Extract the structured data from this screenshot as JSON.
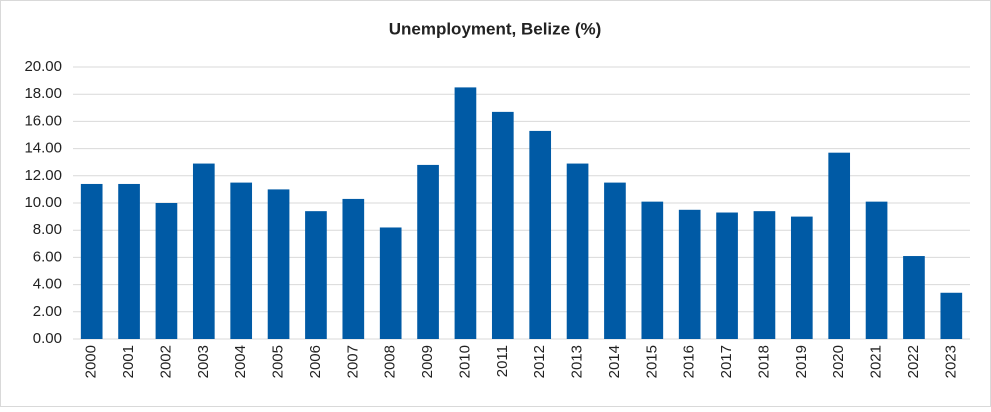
{
  "chart_data": {
    "type": "bar",
    "title": "Unemployment, Belize (%)",
    "categories": [
      "2000",
      "2001",
      "2002",
      "2003",
      "2004",
      "2005",
      "2006",
      "2007",
      "2008",
      "2009",
      "2010",
      "2011",
      "2012",
      "2013",
      "2014",
      "2015",
      "2016",
      "2017",
      "2018",
      "2019",
      "2020",
      "2021",
      "2022",
      "2023"
    ],
    "values": [
      11.4,
      11.4,
      10.0,
      12.9,
      11.5,
      11.0,
      9.4,
      10.3,
      8.2,
      12.8,
      18.5,
      16.7,
      15.3,
      12.9,
      11.5,
      10.1,
      9.5,
      9.3,
      9.4,
      9.0,
      13.7,
      10.1,
      6.1,
      3.4
    ],
    "color": "#005aa5",
    "ylim": [
      0,
      20
    ],
    "yticks": [
      {
        "value": 0,
        "label": "0.00"
      },
      {
        "value": 2,
        "label": "2.00"
      },
      {
        "value": 4,
        "label": "4.00"
      },
      {
        "value": 6,
        "label": "6.00"
      },
      {
        "value": 8,
        "label": "8.00"
      },
      {
        "value": 10,
        "label": "10.00"
      },
      {
        "value": 12,
        "label": "12.00"
      },
      {
        "value": 14,
        "label": "14.00"
      },
      {
        "value": 16,
        "label": "16.00"
      },
      {
        "value": 18,
        "label": "18.00"
      },
      {
        "value": 20,
        "label": "20.00"
      }
    ],
    "grid": true
  }
}
